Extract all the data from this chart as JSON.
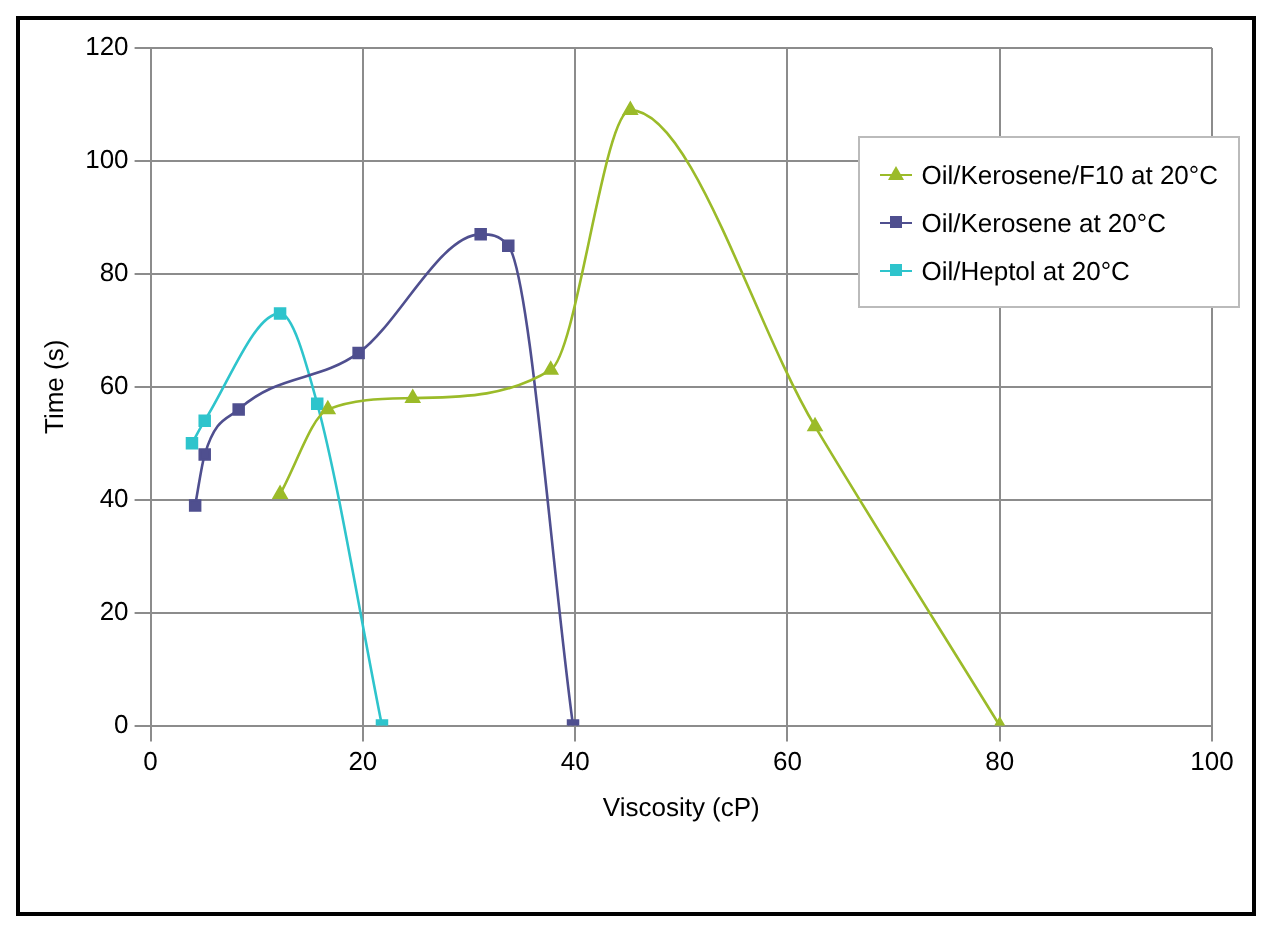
{
  "chart_data": {
    "type": "line",
    "xlabel": "Viscosity (cP)",
    "ylabel": "Time (s)",
    "xlim": [
      0,
      100
    ],
    "xticks": [
      0,
      20,
      40,
      60,
      80,
      100
    ],
    "ylim": [
      0,
      120
    ],
    "yticks": [
      0,
      20,
      40,
      60,
      80,
      100,
      120
    ],
    "grid": true,
    "legend": "top right",
    "line_style": "solid",
    "series": [
      {
        "name": "Oil/Kerosene/F10 at 20°C",
        "color": "#9bbb29",
        "marker": "triangle",
        "x": [
          12.2,
          16.7,
          24.7,
          37.7,
          45.2,
          62.6,
          80
        ],
        "values": [
          41,
          56,
          58,
          63,
          109,
          53,
          0
        ]
      },
      {
        "name": "Oil/Kerosene at 20°C",
        "color": "#4f4f8f",
        "marker": "square",
        "x": [
          4.2,
          5.1,
          8.3,
          19.6,
          31.1,
          33.7,
          39.8
        ],
        "values": [
          39,
          48,
          56,
          66,
          87,
          85,
          0
        ]
      },
      {
        "name": "Oil/Heptol at 20°C",
        "color": "#2ec4cc",
        "marker": "square",
        "x": [
          3.9,
          5.1,
          12.2,
          15.7,
          21.8
        ],
        "values": [
          50,
          54,
          73,
          57,
          0
        ]
      }
    ]
  }
}
